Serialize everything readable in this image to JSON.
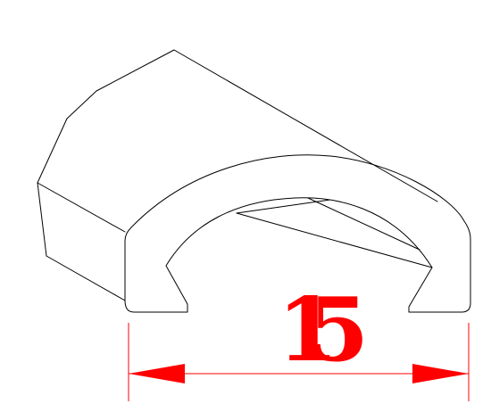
{
  "drawing": {
    "line_color": "#000000",
    "dimension_color": "#ff0000",
    "background": "#ffffff"
  },
  "dimension": {
    "value_text": "15"
  }
}
